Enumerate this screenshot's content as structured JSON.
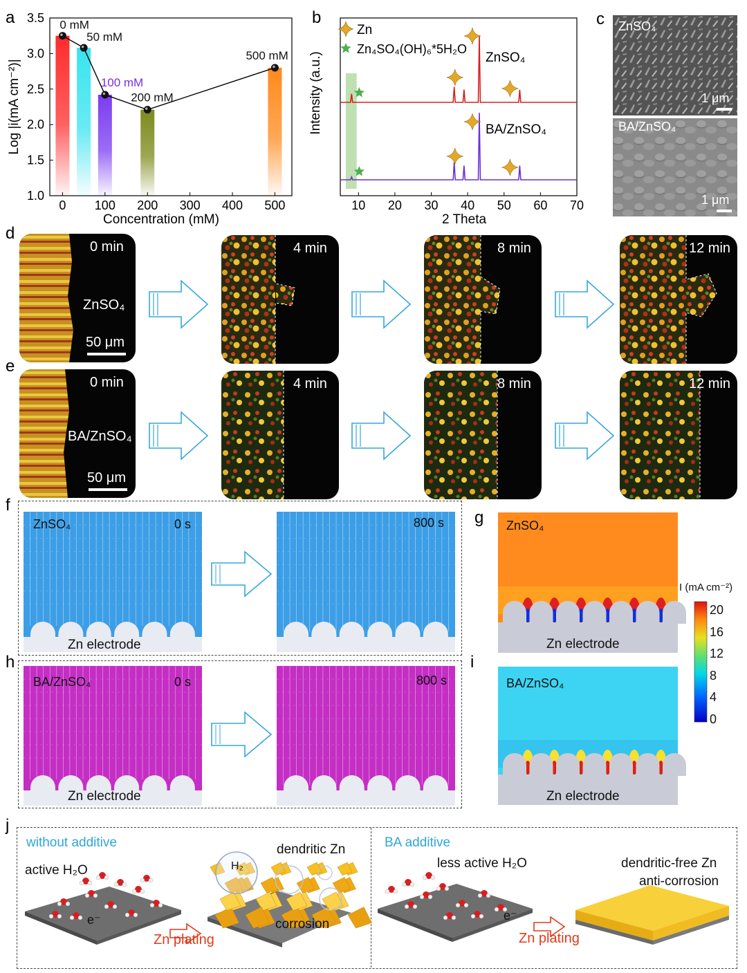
{
  "panel_letters": {
    "a": "a",
    "b": "b",
    "c": "c",
    "d": "d",
    "e": "e",
    "f": "f",
    "g": "g",
    "h": "h",
    "i": "i",
    "j": "j"
  },
  "chart_data": [
    {
      "panel": "a",
      "type": "bar",
      "xlabel": "Concentration (mM)",
      "ylabel": "Log |i(mA cm⁻²)|",
      "xlim": [
        -30,
        540
      ],
      "ylim": [
        1.0,
        3.5
      ],
      "xticks": [
        0,
        100,
        200,
        300,
        400,
        500
      ],
      "yticks": [
        1.0,
        1.5,
        2.0,
        2.5,
        3.0,
        3.5
      ],
      "x": [
        0,
        50,
        100,
        200,
        500
      ],
      "values": [
        3.25,
        3.08,
        2.42,
        2.21,
        2.8
      ],
      "labels": [
        "0 mM",
        "50 mM",
        "100 mM",
        "200 mM",
        "500 mM"
      ],
      "bar_colors": [
        "#ff2b2b",
        "#38e4ef",
        "#7a3cf0",
        "#7d8a1c",
        "#ff8a1c"
      ],
      "label_colors": [
        "#111111",
        "#111111",
        "#7a30d8",
        "#111111",
        "#111111"
      ]
    },
    {
      "panel": "b",
      "type": "line",
      "xlabel": "2 Theta",
      "ylabel": "Intensity (a.u.)",
      "xlim": [
        5,
        70
      ],
      "xticks": [
        10,
        20,
        30,
        40,
        50,
        60,
        70
      ],
      "legend": [
        "Zn",
        "Zn₄SO₄(OH)₆*5H₂O"
      ],
      "legend_colors": [
        "#e4a826",
        "#4caf50"
      ],
      "series": [
        {
          "name": "ZnSO₄",
          "color": "#d62020",
          "peaks": [
            8.1,
            36.3,
            39.0,
            43.2,
            54.3
          ],
          "heights": [
            0.12,
            0.22,
            0.18,
            0.95,
            0.18
          ]
        },
        {
          "name": "BA/ZnSO₄",
          "color": "#6a2fd8",
          "peaks": [
            8.1,
            36.3,
            39.0,
            43.2,
            54.3
          ],
          "heights": [
            0.04,
            0.25,
            0.2,
            0.95,
            0.2
          ]
        }
      ],
      "highlight_range": [
        6.5,
        9.5
      ]
    }
  ],
  "panel_c": {
    "top_label": "ZnSO₄",
    "bottom_label": "BA/ZnSO₄",
    "scale": "1 μm"
  },
  "panel_d": {
    "times": [
      "0 min",
      "4 min",
      "8 min",
      "12 min"
    ],
    "electrolyte": "ZnSO₄",
    "scale": "50 μm"
  },
  "panel_e": {
    "times": [
      "0 min",
      "4 min",
      "8 min",
      "12 min"
    ],
    "electrolyte": "BA/ZnSO₄",
    "scale": "50 μm"
  },
  "panel_f": {
    "label": "ZnSO₄",
    "t0": "0 s",
    "t1": "800 s",
    "electrode": "Zn electrode",
    "color": "#3c9ee6"
  },
  "panel_h": {
    "label": "BA/ZnSO₄",
    "t0": "0 s",
    "t1": "800 s",
    "electrode": "Zn electrode",
    "color": "#c42ec4"
  },
  "panel_g": {
    "label": "ZnSO₄",
    "electrode": "Zn electrode"
  },
  "panel_i": {
    "label": "BA/ZnSO₄",
    "electrode": "Zn electrode"
  },
  "colorbar": {
    "title": "I (mA cm⁻²)",
    "ticks": [
      "20",
      "16",
      "12",
      "8",
      "4",
      "0"
    ]
  },
  "panel_j": {
    "left_title": "without additive",
    "left_h2o": "active H₂O",
    "left_electron": "e⁻",
    "left_arrow": "Zn plating",
    "left_result": "dendritic Zn",
    "left_h2": "H₂",
    "left_corrosion": "corrosion",
    "right_title": "BA additive",
    "right_h2o": "less active H₂O",
    "right_electron": "e⁻",
    "right_arrow": "Zn plating",
    "right_result1": "dendritic-free Zn",
    "right_result2": "anti-corrosion",
    "title_color": "#2ea6d8"
  }
}
